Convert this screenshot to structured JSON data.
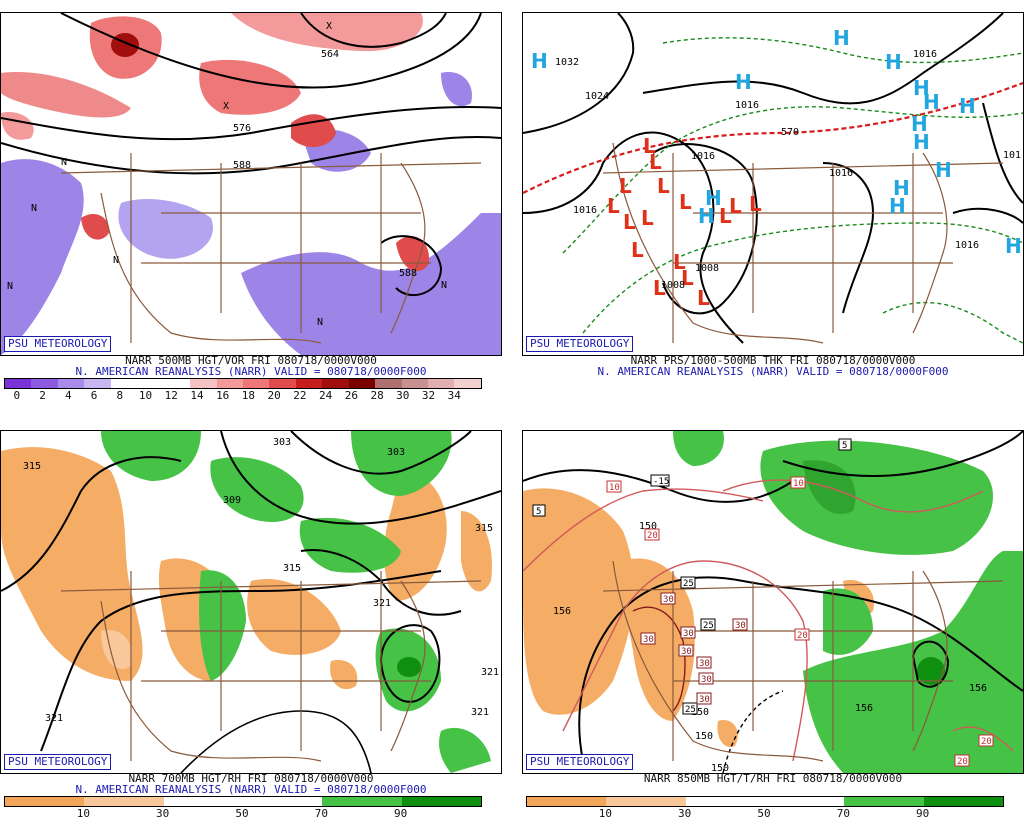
{
  "panels": [
    {
      "badge": "PSU METEOROLOGY",
      "caption1": "NARR 500MB HGT/VOR FRI 080718/0000V000",
      "caption2": "N. AMERICAN REANALYSIS (NARR) VALID = 080718/0000F000",
      "scale_labels": [
        "0",
        "2",
        "4",
        "6",
        "8",
        "10",
        "12",
        "14",
        "16",
        "18",
        "20",
        "22",
        "24",
        "26",
        "28",
        "30",
        "32",
        "34"
      ],
      "scale_colors": [
        "#7a33d6",
        "#8c5be0",
        "#a98cea",
        "#c8b6f2",
        "#ffffff",
        "#ffffff",
        "#ffffff",
        "#f7c2c2",
        "#f39a9a",
        "#ee7777",
        "#e04b4b",
        "#c81d1d",
        "#a00e0e",
        "#7a0000",
        "#b07070",
        "#c99090",
        "#e0b0b0",
        "#f3d0d0"
      ],
      "map_labels": [
        "564",
        "576",
        "588",
        "588",
        "N",
        "N",
        "N",
        "N",
        "N",
        "N",
        "X",
        "X"
      ]
    },
    {
      "badge": "PSU METEOROLOGY",
      "caption1": "NARR PRS/1000-500MB THK FRI 080718/0000V000",
      "caption2": "N. AMERICAN REANALYSIS (NARR) VALID = 080718/0000F000",
      "map_labels": [
        "1032",
        "1024",
        "1016",
        "1016",
        "1016",
        "1016",
        "1016",
        "1008",
        "1008",
        "570",
        "1016",
        "101"
      ],
      "highs": "H",
      "lows": "L"
    },
    {
      "badge": "PSU METEOROLOGY",
      "caption1": "NARR 700MB HGT/RH FRI 080718/0000V000",
      "caption2": "N. AMERICAN REANALYSIS (NARR) VALID = 080718/0000F000",
      "scale_labels": [
        "10",
        "30",
        "50",
        "70",
        "90"
      ],
      "scale_colors": [
        "#f3a65a",
        "#f8c89a",
        "#ffffff",
        "#ffffff",
        "#46c246",
        "#0f8f0f"
      ],
      "map_labels": [
        "315",
        "303",
        "303",
        "309",
        "315",
        "315",
        "321",
        "321",
        "321",
        "321"
      ]
    },
    {
      "badge": "PSU METEOROLOGY",
      "caption1": "NARR 850MB HGT/T/RH FRI 080718/0000V000",
      "scale_labels": [
        "10",
        "30",
        "50",
        "70",
        "90"
      ],
      "scale_colors": [
        "#f3a65a",
        "#f8c89a",
        "#ffffff",
        "#ffffff",
        "#46c246",
        "#0f8f0f"
      ],
      "map_labels": [
        "150",
        "156",
        "156",
        "156",
        "150",
        "150",
        "150",
        "5",
        "5",
        "-15",
        "10",
        "10",
        "20",
        "20",
        "20",
        "20",
        "25",
        "25",
        "25",
        "30",
        "30",
        "30",
        "30",
        "30",
        "30",
        "30",
        "30"
      ]
    }
  ]
}
